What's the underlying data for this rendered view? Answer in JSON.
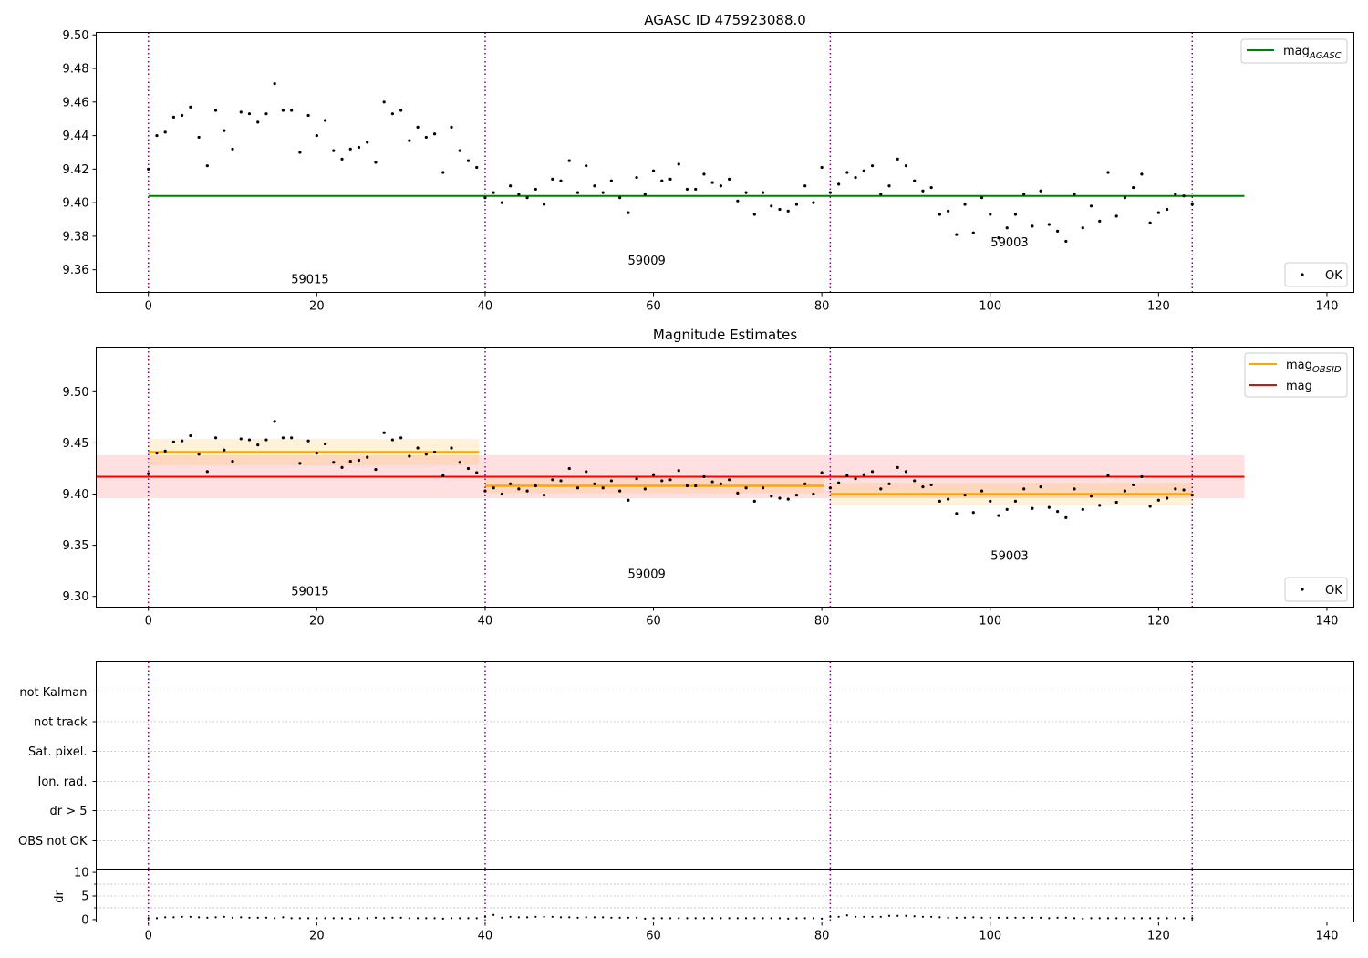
{
  "colors": {
    "agasc": "#008000",
    "obsid": "#ffa500",
    "mag": "#ff0000",
    "obsid_boundary": "#800080",
    "points": "#000000",
    "grid": "#b0b0b0"
  },
  "chart_data": [
    {
      "type": "scatter",
      "title": "AGASC ID 475923088.0",
      "xlabel": "",
      "ylabel": "",
      "xlim": [
        -6.2,
        143.2
      ],
      "ylim": [
        9.3465,
        9.5015
      ],
      "xticks": [
        0,
        20,
        40,
        60,
        80,
        100,
        120,
        140
      ],
      "yticks": [
        9.36,
        9.38,
        9.4,
        9.42,
        9.44,
        9.46,
        9.48,
        9.5
      ],
      "ytick_labels": [
        "9.36",
        "9.38",
        "9.40",
        "9.42",
        "9.44",
        "9.46",
        "9.48",
        "9.50"
      ],
      "mag_agasc": 9.404,
      "obsid_boundaries": [
        0,
        40,
        81,
        124
      ],
      "obsid_labels": [
        {
          "text": "59015",
          "x": 19.2,
          "y": 9.352
        },
        {
          "text": "59009",
          "x": 59.2,
          "y": 9.363
        },
        {
          "text": "59003",
          "x": 102.3,
          "y": 9.374
        }
      ],
      "legend_upper": {
        "position": "top-right",
        "label_main": "mag",
        "label_sub": "AGASC"
      },
      "legend_lower": {
        "position": "bottom-right",
        "label": "OK"
      },
      "mag_line_xmax": 130.2
    },
    {
      "type": "scatter",
      "title": "Magnitude Estimates",
      "xlabel": "",
      "ylabel": "",
      "xlim": [
        -6.2,
        143.2
      ],
      "ylim": [
        9.2895,
        9.5435
      ],
      "xticks": [
        0,
        20,
        40,
        60,
        80,
        100,
        120,
        140
      ],
      "yticks": [
        9.3,
        9.35,
        9.4,
        9.45,
        9.5
      ],
      "ytick_labels": [
        "9.30",
        "9.35",
        "9.40",
        "9.45",
        "9.50"
      ],
      "mag": 9.417,
      "mag_band": [
        9.396,
        9.438
      ],
      "obsid_segments": [
        {
          "x0": 0,
          "x1": 39.3,
          "mag": 9.441,
          "band": [
            9.428,
            9.454
          ]
        },
        {
          "x0": 40,
          "x1": 80.3,
          "mag": 9.408,
          "band": [
            9.401,
            9.415
          ]
        },
        {
          "x0": 81,
          "x1": 124,
          "mag": 9.4,
          "band": [
            9.389,
            9.411
          ]
        }
      ],
      "obsid_boundaries": [
        0,
        40,
        81,
        124
      ],
      "obsid_labels": [
        {
          "text": "59015",
          "x": 19.2,
          "y": 9.301
        },
        {
          "text": "59009",
          "x": 59.2,
          "y": 9.318
        },
        {
          "text": "59003",
          "x": 102.3,
          "y": 9.336
        }
      ],
      "legend_upper": {
        "position": "top-right",
        "label_obsid_main": "mag",
        "label_obsid_sub": "OBSID",
        "label_mag": "mag"
      },
      "legend_lower": {
        "position": "bottom-right",
        "label": "OK"
      },
      "mag_line_xmax": 130.2
    },
    {
      "type": "scatter",
      "title": "",
      "xlabel": "",
      "ylabel": "",
      "flag_labels": [
        "not Kalman",
        "not track",
        "Sat. pixel.",
        "Ion. rad.",
        "dr > 5",
        "OBS not OK"
      ],
      "flag_points": [],
      "obsid_boundaries": [
        0,
        40,
        81,
        124
      ]
    },
    {
      "type": "scatter",
      "title": "",
      "xlabel": "",
      "ylabel": "dr",
      "xlim": [
        -6.2,
        143.2
      ],
      "ylim": [
        -0.5,
        10.5
      ],
      "xticks": [
        0,
        20,
        40,
        60,
        80,
        100,
        120,
        140
      ],
      "yticks": [
        0,
        5,
        10
      ],
      "ytick_labels": [
        "0",
        "5",
        "10"
      ],
      "obsid_boundaries": [
        0,
        40,
        81,
        124
      ],
      "dr": [
        0.3,
        0.3,
        0.5,
        0.5,
        0.6,
        0.6,
        0.5,
        0.4,
        0.5,
        0.6,
        0.4,
        0.5,
        0.4,
        0.4,
        0.4,
        0.3,
        0.5,
        0.3,
        0.3,
        0.3,
        0.3,
        0.3,
        0.3,
        0.3,
        0.2,
        0.3,
        0.3,
        0.4,
        0.3,
        0.4,
        0.4,
        0.3,
        0.3,
        0.3,
        0.3,
        0.2,
        0.3,
        0.3,
        0.3,
        0.3,
        0.6,
        1.0,
        0.4,
        0.6,
        0.5,
        0.5,
        0.6,
        0.6,
        0.6,
        0.5,
        0.5,
        0.4,
        0.5,
        0.5,
        0.5,
        0.4,
        0.4,
        0.4,
        0.4,
        0.2,
        0.3,
        0.3,
        0.3,
        0.3,
        0.3,
        0.3,
        0.3,
        0.3,
        0.3,
        0.3,
        0.3,
        0.3,
        0.3,
        0.3,
        0.3,
        0.3,
        0.2,
        0.3,
        0.3,
        0.3,
        0.2,
        0.6,
        0.6,
        0.9,
        0.6,
        0.6,
        0.6,
        0.6,
        0.8,
        0.8,
        0.8,
        0.7,
        0.6,
        0.6,
        0.5,
        0.4,
        0.4,
        0.4,
        0.5,
        0.4,
        0.4,
        0.4,
        0.4,
        0.4,
        0.4,
        0.4,
        0.4,
        0.3,
        0.4,
        0.4,
        0.3,
        0.2,
        0.3,
        0.3,
        0.3,
        0.3,
        0.3,
        0.3,
        0.3,
        0.3,
        0.3,
        0.3,
        0.3,
        0.3,
        0.3
      ]
    }
  ],
  "mags": [
    9.42,
    9.44,
    9.442,
    9.451,
    9.452,
    9.457,
    9.439,
    9.422,
    9.455,
    9.443,
    9.432,
    9.454,
    9.453,
    9.448,
    9.453,
    9.471,
    9.455,
    9.455,
    9.43,
    9.452,
    9.44,
    9.449,
    9.431,
    9.426,
    9.432,
    9.433,
    9.436,
    9.424,
    9.46,
    9.453,
    9.455,
    9.437,
    9.445,
    9.439,
    9.441,
    9.418,
    9.445,
    9.431,
    9.425,
    9.421,
    9.403,
    9.406,
    9.4,
    9.41,
    9.405,
    9.403,
    9.408,
    9.399,
    9.414,
    9.413,
    9.425,
    9.406,
    9.422,
    9.41,
    9.406,
    9.413,
    9.403,
    9.394,
    9.415,
    9.405,
    9.419,
    9.413,
    9.414,
    9.423,
    9.408,
    9.408,
    9.417,
    9.412,
    9.41,
    9.414,
    9.401,
    9.406,
    9.393,
    9.406,
    9.398,
    9.396,
    9.395,
    9.399,
    9.41,
    9.4,
    9.421,
    9.406,
    9.411,
    9.418,
    9.415,
    9.419,
    9.422,
    9.405,
    9.41,
    9.426,
    9.422,
    9.413,
    9.407,
    9.409,
    9.393,
    9.395,
    9.381,
    9.399,
    9.382,
    9.403,
    9.393,
    9.379,
    9.385,
    9.393,
    9.405,
    9.386,
    9.407,
    9.387,
    9.383,
    9.377,
    9.405,
    9.385,
    9.398,
    9.389,
    9.418,
    9.392,
    9.403,
    9.409,
    9.417,
    9.388,
    9.394,
    9.396,
    9.405,
    9.404,
    9.399
  ]
}
